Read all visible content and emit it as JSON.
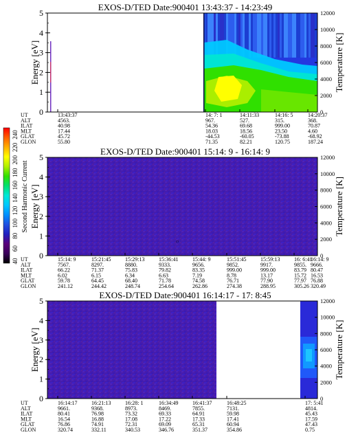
{
  "chart_data": [
    {
      "type": "heatmap",
      "title": "EXOS-D/TED   Date:900401   13:43:37 - 14:23:49",
      "ylabel": "Energy [eV]",
      "ylabel_right": "Temperature [K]",
      "ylim": [
        0,
        5
      ],
      "ylim_right": [
        0,
        12000
      ],
      "yticks": [
        0,
        1,
        2,
        3,
        4,
        5
      ],
      "yticks_right": [
        0,
        2000,
        4000,
        6000,
        8000,
        10000,
        12000
      ],
      "xticks": [
        "13:43:37",
        "14: 7: 1",
        "14:11:33",
        "14:16: 5",
        "14:20:37"
      ],
      "rows": [
        {
          "label": "UT",
          "values": [
            "13:43:37",
            "14: 7: 1",
            "14:11:33",
            "14:16: 5",
            "14:20:37"
          ]
        },
        {
          "label": "ALT",
          "values": [
            "4563.",
            "967.",
            "527.",
            "315.",
            "368."
          ]
        },
        {
          "label": "ILAT",
          "values": [
            "40.98",
            "54.36",
            "69.68",
            "999.00",
            "70.87"
          ]
        },
        {
          "label": "MLT",
          "values": [
            "17.44",
            "18.03",
            "18.56",
            "23.50",
            "4.60"
          ]
        },
        {
          "label": "GLAT",
          "values": [
            "45.72",
            "-44.53",
            "-60.05",
            "-73.88",
            "-68.92"
          ]
        },
        {
          "label": "GLON",
          "values": [
            "55.80",
            "71.35",
            "82.21",
            "120.75",
            "187.24"
          ]
        }
      ]
    },
    {
      "type": "heatmap",
      "title": "EXOS-D/TED   Date:900401   15:14: 9 - 16:14: 9",
      "ylabel": "Energy [eV]",
      "ylabel_right": "Temperature [K]",
      "ylim": [
        0,
        5
      ],
      "ylim_right": [
        0,
        12000
      ],
      "yticks": [
        0,
        1,
        2,
        3,
        4,
        5
      ],
      "yticks_right": [
        0,
        2000,
        4000,
        6000,
        8000,
        10000,
        12000
      ],
      "xticks": [
        "15:14: 9",
        "15:21:45",
        "15:29:13",
        "15:36:41",
        "15:44: 9",
        "15:51:45",
        "15:59:13",
        "16: 6:41",
        "16:14: 9"
      ],
      "rows": [
        {
          "label": "UT",
          "values": [
            "15:14: 9",
            "15:21:45",
            "15:29:13",
            "15:36:41",
            "15:44: 9",
            "15:51:45",
            "15:59:13",
            "16: 6:41",
            "16:14: 9"
          ]
        },
        {
          "label": "ALT",
          "values": [
            "7567.",
            "8297.",
            "8880.",
            "9333.",
            "9656.",
            "9852.",
            "9917.",
            "9855.",
            "9666."
          ]
        },
        {
          "label": "ILAT",
          "values": [
            "66.22",
            "71.37",
            "75.83",
            "79.82",
            "83.35",
            "999.00",
            "999.00",
            "83.79",
            "80.47"
          ]
        },
        {
          "label": "MLT",
          "values": [
            "6.02",
            "6.15",
            "6.34",
            "6.63",
            "7.19",
            "8.78",
            "13.17",
            "15.72",
            "16.53"
          ]
        },
        {
          "label": "GLAT",
          "values": [
            "59.78",
            "64.45",
            "68.40",
            "71.78",
            "74.58",
            "76.71",
            "77.90",
            "77.97",
            "76.88"
          ]
        },
        {
          "label": "GLON",
          "values": [
            "241.12",
            "244.42",
            "248.74",
            "254.64",
            "262.86",
            "274.38",
            "288.95",
            "305.26",
            "320.49"
          ]
        }
      ]
    },
    {
      "type": "heatmap",
      "title": "EXOS-D/TED   Date:900401   16:14:17 - 17: 8:45",
      "ylabel": "Energy [eV]",
      "ylabel_right": "Temperature [K]",
      "ylim": [
        0,
        5
      ],
      "ylim_right": [
        0,
        12000
      ],
      "yticks": [
        0,
        1,
        2,
        3,
        4,
        5
      ],
      "yticks_right": [
        0,
        2000,
        4000,
        6000,
        8000,
        10000,
        12000
      ],
      "xticks": [
        "16:14:17",
        "16:21:13",
        "16:28: 1",
        "16:34:49",
        "16:41:37",
        "16:48:25",
        "17: 5:41"
      ],
      "rows": [
        {
          "label": "UT",
          "values": [
            "16:14:17",
            "16:21:13",
            "16:28: 1",
            "16:34:49",
            "16:41:37",
            "16:48:25",
            "17: 5:41"
          ]
        },
        {
          "label": "ALT",
          "values": [
            "9661.",
            "9368.",
            "8973.",
            "8469.",
            "7855.",
            "7131.",
            "4814."
          ]
        },
        {
          "label": "ILAT",
          "values": [
            "80.41",
            "76.98",
            "73.32",
            "69.33",
            "64.91",
            "59.98",
            "45.43"
          ]
        },
        {
          "label": "MLT",
          "values": [
            "16.54",
            "16.88",
            "17.08",
            "17.22",
            "17.33",
            "17.41",
            "17.59"
          ]
        },
        {
          "label": "GLAT",
          "values": [
            "76.86",
            "74.91",
            "72.31",
            "69.09",
            "65.31",
            "60.94",
            "47.43"
          ]
        },
        {
          "label": "GLON",
          "values": [
            "320.74",
            "332.11",
            "340.53",
            "346.76",
            "351.37",
            "354.86",
            "0.75"
          ]
        }
      ]
    }
  ],
  "colorbar": {
    "label": "Second Harmonic Current",
    "ticks": [
      "40",
      "60",
      "80",
      "100",
      "120",
      "140",
      "160",
      "180",
      "200",
      "220",
      "240"
    ],
    "colors": [
      "#000000",
      "#3a005a",
      "#5a007a",
      "#2020c0",
      "#2050e0",
      "#0090ff",
      "#00c8ff",
      "#00e8d8",
      "#00e070",
      "#30e000",
      "#b0f000",
      "#ffff00",
      "#ffb000",
      "#ff6000",
      "#ff0000"
    ]
  },
  "palette": {
    "background": "#4a1aa0",
    "deep_blue": "#2a30d8",
    "mid_blue": "#1e66ff",
    "cyan": "#00c8ff",
    "green": "#30e000",
    "yellow": "#ffff00"
  }
}
